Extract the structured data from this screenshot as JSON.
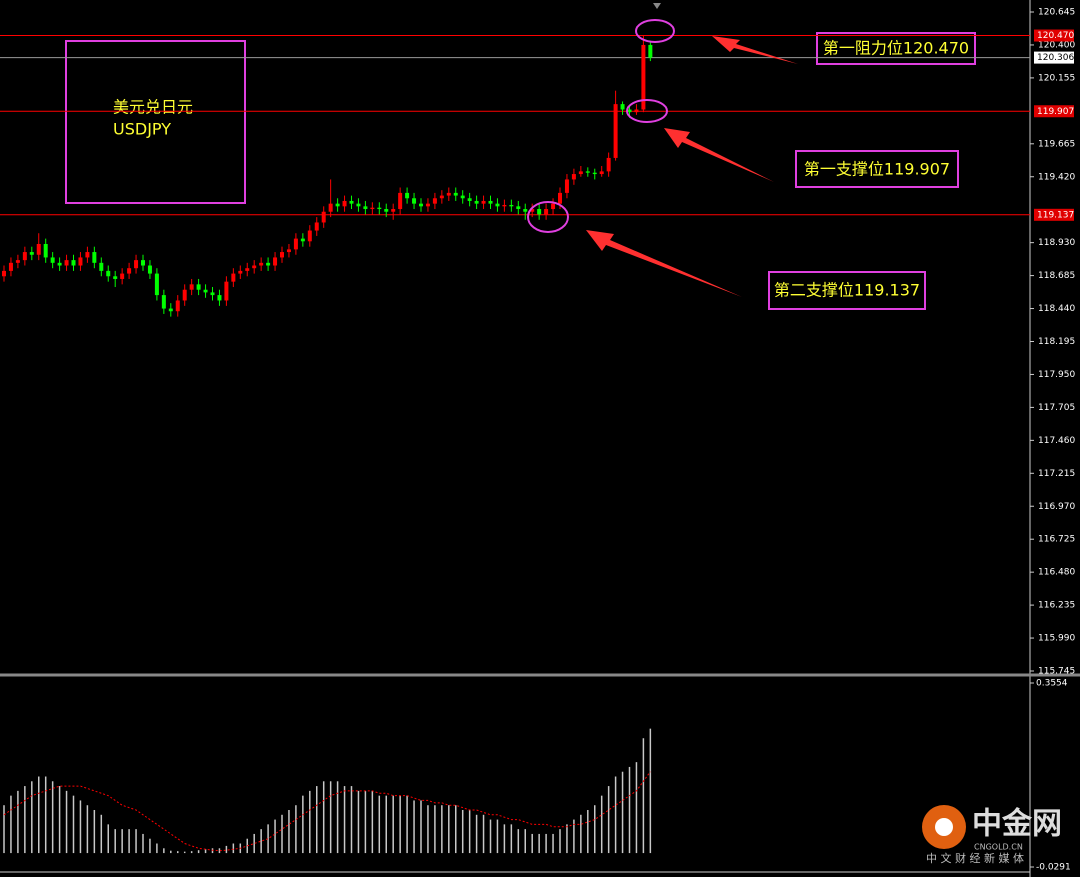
{
  "chart_data": {
    "type": "candlestick",
    "up_color": "#ff0000",
    "down_color": "#00ff00",
    "open": [
      118.68,
      118.72,
      118.78,
      118.8,
      118.86,
      118.84,
      118.92,
      118.82,
      118.78,
      118.76,
      118.8,
      118.76,
      118.82,
      118.86,
      118.78,
      118.72,
      118.68,
      118.66,
      118.7,
      118.74,
      118.8,
      118.76,
      118.7,
      118.54,
      118.44,
      118.42,
      118.5,
      118.58,
      118.62,
      118.58,
      118.56,
      118.54,
      118.5,
      118.64,
      118.7,
      118.72,
      118.74,
      118.76,
      118.78,
      118.76,
      118.82,
      118.86,
      118.88,
      118.96,
      118.94,
      119.02,
      119.08,
      119.16,
      119.22,
      119.2,
      119.24,
      119.22,
      119.2,
      119.18,
      119.19,
      119.18,
      119.16,
      119.18,
      119.3,
      119.26,
      119.22,
      119.2,
      119.22,
      119.26,
      119.28,
      119.3,
      119.28,
      119.26,
      119.24,
      119.22,
      119.24,
      119.22,
      119.2,
      119.21,
      119.2,
      119.18,
      119.16,
      119.18,
      119.14,
      119.18,
      119.22,
      119.3,
      119.4,
      119.44,
      119.46,
      119.45,
      119.44,
      119.46,
      119.56,
      119.96,
      119.92,
      119.9,
      119.92,
      120.4
    ],
    "high": [
      118.76,
      118.82,
      118.84,
      118.9,
      118.9,
      119.0,
      118.96,
      118.86,
      118.82,
      118.84,
      118.84,
      118.86,
      118.9,
      118.9,
      118.82,
      118.76,
      118.72,
      118.74,
      118.78,
      118.84,
      118.84,
      118.8,
      118.74,
      118.58,
      118.48,
      118.54,
      118.62,
      118.66,
      118.66,
      118.62,
      118.6,
      118.58,
      118.68,
      118.74,
      118.76,
      118.78,
      118.8,
      118.82,
      118.82,
      118.86,
      118.9,
      118.92,
      119.0,
      119.0,
      119.06,
      119.12,
      119.2,
      119.4,
      119.26,
      119.28,
      119.28,
      119.26,
      119.24,
      119.23,
      119.23,
      119.22,
      119.22,
      119.34,
      119.34,
      119.3,
      119.26,
      119.26,
      119.3,
      119.32,
      119.34,
      119.34,
      119.32,
      119.3,
      119.28,
      119.28,
      119.28,
      119.26,
      119.25,
      119.25,
      119.24,
      119.22,
      119.22,
      119.22,
      119.22,
      119.26,
      119.34,
      119.44,
      119.48,
      119.5,
      119.49,
      119.48,
      119.5,
      119.6,
      120.06,
      119.98,
      119.95,
      119.96,
      120.47,
      120.43
    ],
    "low": [
      118.64,
      118.68,
      118.74,
      118.76,
      118.8,
      118.8,
      118.78,
      118.74,
      118.72,
      118.72,
      118.72,
      118.72,
      118.78,
      118.74,
      118.68,
      118.64,
      118.6,
      118.62,
      118.66,
      118.7,
      118.72,
      118.66,
      118.5,
      118.4,
      118.38,
      118.38,
      118.46,
      118.54,
      118.54,
      118.52,
      118.5,
      118.46,
      118.46,
      118.6,
      118.66,
      118.68,
      118.7,
      118.72,
      118.72,
      118.72,
      118.78,
      118.82,
      118.84,
      118.9,
      118.9,
      118.98,
      119.04,
      119.12,
      119.16,
      119.16,
      119.18,
      119.16,
      119.14,
      119.14,
      119.14,
      119.12,
      119.1,
      119.14,
      119.22,
      119.18,
      119.16,
      119.16,
      119.18,
      119.22,
      119.24,
      119.24,
      119.22,
      119.2,
      119.18,
      119.18,
      119.18,
      119.16,
      119.16,
      119.16,
      119.14,
      119.1,
      119.12,
      119.1,
      119.1,
      119.14,
      119.18,
      119.26,
      119.36,
      119.42,
      119.42,
      119.4,
      119.42,
      119.42,
      119.54,
      119.88,
      119.86,
      119.88,
      119.9,
      120.28
    ],
    "close": [
      118.72,
      118.78,
      118.8,
      118.86,
      118.84,
      118.92,
      118.82,
      118.78,
      118.76,
      118.8,
      118.76,
      118.82,
      118.86,
      118.78,
      118.72,
      118.68,
      118.66,
      118.7,
      118.74,
      118.8,
      118.76,
      118.7,
      118.54,
      118.44,
      118.42,
      118.5,
      118.58,
      118.62,
      118.58,
      118.56,
      118.54,
      118.5,
      118.64,
      118.7,
      118.72,
      118.74,
      118.76,
      118.78,
      118.76,
      118.82,
      118.86,
      118.88,
      118.96,
      118.94,
      119.02,
      119.08,
      119.16,
      119.22,
      119.2,
      119.24,
      119.22,
      119.2,
      119.18,
      119.19,
      119.18,
      119.16,
      119.18,
      119.3,
      119.26,
      119.22,
      119.2,
      119.22,
      119.26,
      119.28,
      119.3,
      119.28,
      119.26,
      119.24,
      119.22,
      119.24,
      119.22,
      119.2,
      119.21,
      119.2,
      119.18,
      119.16,
      119.18,
      119.14,
      119.18,
      119.22,
      119.3,
      119.4,
      119.44,
      119.46,
      119.45,
      119.44,
      119.46,
      119.56,
      119.96,
      119.92,
      119.9,
      119.92,
      120.4,
      120.306
    ],
    "ylim": [
      115.745,
      120.645
    ],
    "yticks": [
      120.645,
      {
        "value": 120.4,
        "label": "120.400"
      },
      120.155,
      119.665,
      {
        "value": 119.42,
        "label": "119.420"
      },
      {
        "value": 118.93,
        "label": "118.930"
      },
      118.685,
      {
        "value": 118.44,
        "label": "118.440"
      },
      118.195,
      {
        "value": 117.95,
        "label": "117.950"
      },
      117.705,
      {
        "value": 117.46,
        "label": "117.460"
      },
      117.215,
      {
        "value": 116.97,
        "label": "116.970"
      },
      116.725,
      {
        "value": 116.48,
        "label": "116.480"
      },
      116.235,
      {
        "value": 115.99,
        "label": "115.990"
      },
      115.745
    ],
    "levels": [
      {
        "value": 120.47,
        "label": "120.470",
        "color": "#ff0000"
      },
      {
        "value": 120.306,
        "label": "120.306",
        "color": "#9a9a9a"
      },
      {
        "value": 119.907,
        "label": "119.907",
        "color": "#ff0000"
      },
      {
        "value": 119.137,
        "label": "119.137",
        "color": "#ff0000"
      }
    ],
    "box_title": "美元兑日元",
    "box_symbol": "USDJPY",
    "annotations": [
      "第一阻力位120.470",
      "第一支撑位119.907",
      "第二支撑位119.137"
    ],
    "indicator": {
      "ylim": [
        -0.0291,
        0.3554
      ],
      "yticks": [
        0.3554,
        -0.0291
      ],
      "histogram_color": "#c8c8c8",
      "signal_color": "#ff0000",
      "histogram": [
        0.1,
        0.12,
        0.13,
        0.14,
        0.15,
        0.16,
        0.16,
        0.15,
        0.14,
        0.13,
        0.12,
        0.11,
        0.1,
        0.09,
        0.08,
        0.06,
        0.05,
        0.05,
        0.05,
        0.05,
        0.04,
        0.03,
        0.02,
        0.01,
        0.005,
        0.004,
        0.003,
        0.004,
        0.006,
        0.008,
        0.01,
        0.01,
        0.015,
        0.02,
        0.02,
        0.03,
        0.04,
        0.05,
        0.06,
        0.07,
        0.08,
        0.09,
        0.1,
        0.12,
        0.13,
        0.14,
        0.15,
        0.15,
        0.15,
        0.14,
        0.14,
        0.13,
        0.13,
        0.13,
        0.12,
        0.12,
        0.12,
        0.12,
        0.12,
        0.11,
        0.11,
        0.1,
        0.1,
        0.1,
        0.1,
        0.1,
        0.09,
        0.09,
        0.08,
        0.08,
        0.07,
        0.07,
        0.06,
        0.06,
        0.05,
        0.05,
        0.04,
        0.04,
        0.04,
        0.04,
        0.05,
        0.06,
        0.07,
        0.08,
        0.09,
        0.1,
        0.12,
        0.14,
        0.16,
        0.17,
        0.18,
        0.19,
        0.24,
        0.26
      ],
      "signal": [
        0.08,
        0.09,
        0.1,
        0.11,
        0.12,
        0.125,
        0.13,
        0.135,
        0.14,
        0.14,
        0.14,
        0.14,
        0.135,
        0.13,
        0.125,
        0.12,
        0.11,
        0.1,
        0.095,
        0.09,
        0.08,
        0.07,
        0.06,
        0.05,
        0.04,
        0.03,
        0.02,
        0.015,
        0.01,
        0.008,
        0.006,
        0.005,
        0.006,
        0.008,
        0.01,
        0.015,
        0.02,
        0.025,
        0.03,
        0.04,
        0.05,
        0.06,
        0.07,
        0.08,
        0.09,
        0.1,
        0.11,
        0.12,
        0.125,
        0.13,
        0.13,
        0.13,
        0.13,
        0.13,
        0.125,
        0.125,
        0.12,
        0.12,
        0.12,
        0.115,
        0.11,
        0.11,
        0.105,
        0.105,
        0.1,
        0.1,
        0.095,
        0.09,
        0.09,
        0.085,
        0.08,
        0.08,
        0.075,
        0.07,
        0.07,
        0.065,
        0.06,
        0.06,
        0.06,
        0.055,
        0.055,
        0.055,
        0.06,
        0.06,
        0.065,
        0.07,
        0.08,
        0.09,
        0.1,
        0.11,
        0.12,
        0.13,
        0.15,
        0.17
      ]
    },
    "watermark": {
      "brand": "中金网",
      "site": "CNGOLD.CN",
      "tagline": "中 文 财 经 新 媒 体"
    }
  }
}
